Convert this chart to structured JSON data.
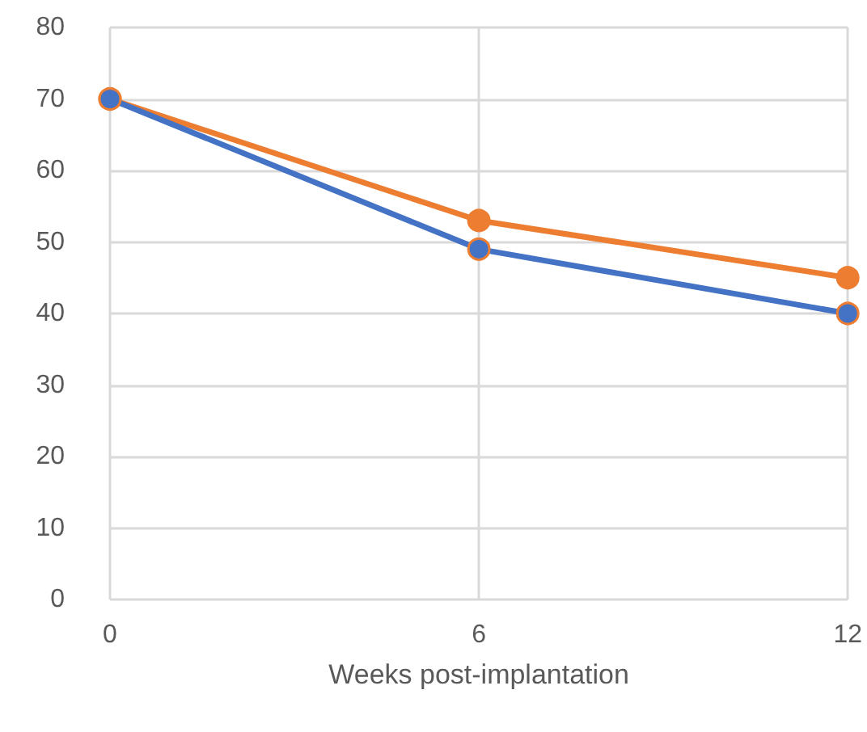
{
  "chart_data": {
    "type": "line",
    "xlabel": "Weeks post-implantation",
    "x": [
      0,
      6,
      12
    ],
    "series": [
      {
        "color": "#4472c4",
        "values": [
          70,
          49,
          40
        ]
      },
      {
        "color": "#ed7d31",
        "values": [
          70,
          53,
          45
        ]
      }
    ],
    "xlim": [
      0,
      12
    ],
    "xticks": [
      0,
      6,
      12
    ],
    "ylim": [
      0,
      80
    ],
    "yticks": [
      0,
      10,
      20,
      30,
      40,
      50,
      60,
      70,
      80
    ],
    "grid": true,
    "marker": "circle",
    "line_style": "solid"
  }
}
